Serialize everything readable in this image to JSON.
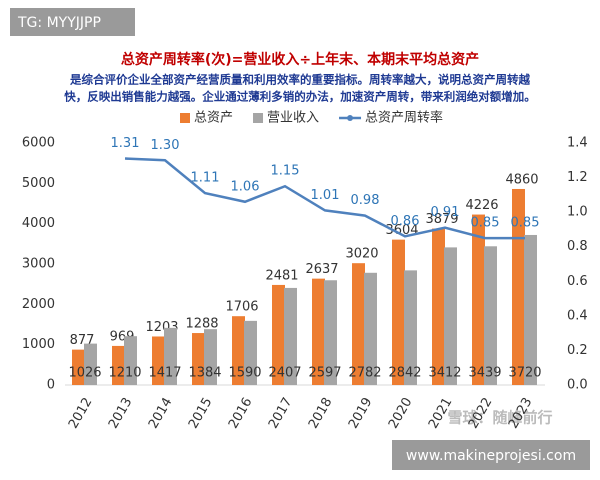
{
  "overlays": {
    "top_left": "TG: MYYJJPP",
    "bottom_right": "www.makineprojesi.com",
    "watermark": "雪球：随峰前行"
  },
  "chart_data": {
    "type": "bar",
    "title": "总资产周转率(次)=营业收入÷上年末、本期末平均总资产",
    "subtitle": [
      "是综合评价企业全部资产经营质量和利用效率的重要指标。周转率越大，说明总资产周转越",
      "快，反映出销售能力越强。企业通过薄利多销的办法，加速资产周转，带来利润绝对额增加。"
    ],
    "categories": [
      "2012",
      "2013",
      "2014",
      "2015",
      "2016",
      "2017",
      "2018",
      "2019",
      "2020",
      "2021",
      "2022",
      "2023"
    ],
    "series": [
      {
        "name": "总资产",
        "type": "bar",
        "color": "#ed7d31",
        "values": [
          877,
          969,
          1203,
          1288,
          1706,
          2481,
          2637,
          3020,
          3604,
          3879,
          4226,
          4860
        ]
      },
      {
        "name": "营业收入",
        "type": "bar",
        "color": "#a5a5a5",
        "values": [
          1026,
          1210,
          1417,
          1384,
          1590,
          2407,
          2597,
          2782,
          2842,
          3412,
          3439,
          3720
        ]
      },
      {
        "name": "总资产周转率",
        "type": "line",
        "axis": "y2",
        "color": "#4f81bd",
        "values": [
          null,
          1.31,
          1.3,
          1.11,
          1.06,
          1.15,
          1.01,
          0.98,
          0.86,
          0.91,
          0.85,
          0.85
        ],
        "value_labels": [
          null,
          "1.31",
          "1.30",
          "1.11",
          "1.06",
          "1.15",
          "1.01",
          "0.98",
          "0.86",
          "0.91",
          "0.85",
          "0.85"
        ]
      }
    ],
    "ylim": [
      0,
      6000
    ],
    "yticks": [
      0,
      1000,
      2000,
      3000,
      4000,
      5000,
      6000
    ],
    "y2lim": [
      0,
      1.4
    ],
    "y2ticks": [
      {
        "value": 0,
        "label": "0.0"
      },
      0.2,
      0.4,
      0.6,
      0.8,
      {
        "value": 1,
        "label": "1.0"
      },
      1.2,
      1.4
    ],
    "grid": false,
    "legend": "top"
  }
}
